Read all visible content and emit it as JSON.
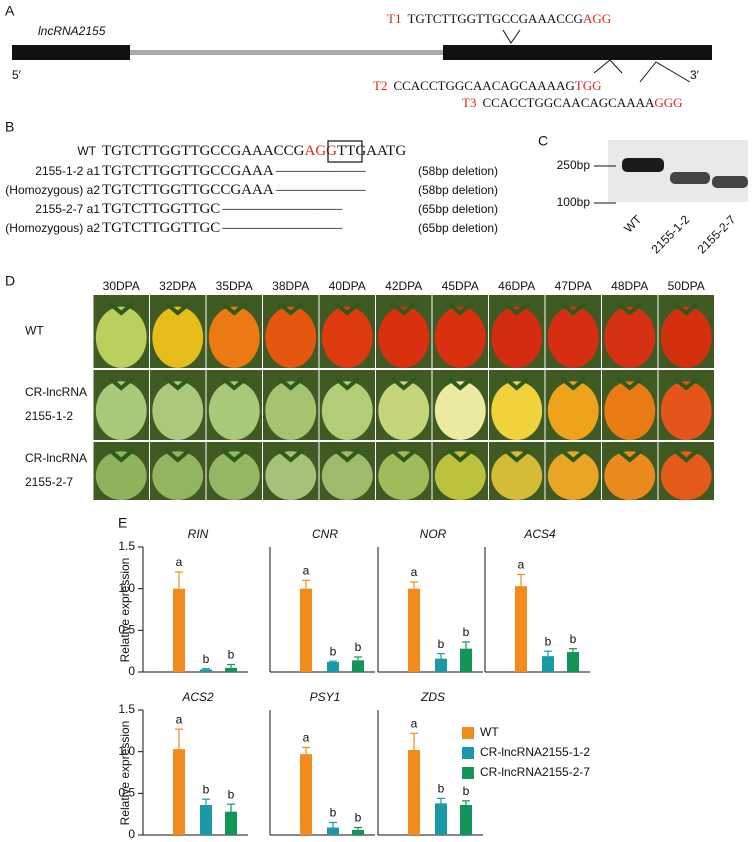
{
  "panel_a": {
    "label": "A",
    "gene": "lncRNA2155",
    "five_prime": "5′",
    "three_prime": "3′",
    "targets": [
      {
        "name": "T1",
        "sequence": "TGTCTTGGTTGCCGAAACCG",
        "pam": "AGG"
      },
      {
        "name": "T2",
        "sequence": "CCACCTGGCAACAGCAAAAG",
        "pam": "TGG"
      },
      {
        "name": "T3",
        "sequence": "CCACCTGGCAACAGCAAAA",
        "pam": "GGG"
      }
    ]
  },
  "panel_b": {
    "label": "B",
    "wt": {
      "name": "WT",
      "sequence": "TGTCTTGGTTGCCGAAACCG",
      "pam": "AGG",
      "tail": "TTGAATG"
    },
    "rows": [
      {
        "name": "2155-1-2 a1",
        "sequence": "TGTCTTGGTTGCCGAAA",
        "gap": "––––––––––––",
        "note": "(58bp deletion)"
      },
      {
        "name": "(Homozygous) a2",
        "sequence": "TGTCTTGGTTGCCGAAA",
        "gap": "––––––––––––",
        "note": "(58bp deletion)"
      },
      {
        "name": "2155-2-7 a1",
        "sequence": "TGTCTTGGTTGC",
        "gap": "––––––––––––––––",
        "note": "(65bp deletion)"
      },
      {
        "name": "(Homozygous) a2",
        "sequence": "TGTCTTGGTTGC",
        "gap": "––––––––––––––––",
        "note": "(65bp deletion)"
      }
    ]
  },
  "panel_c": {
    "label": "C",
    "markers": [
      "250bp",
      "100bp"
    ],
    "lanes": [
      "WT",
      "2155-1-2",
      "2155-2-7"
    ]
  },
  "panel_d": {
    "label": "D",
    "stages": [
      "30DPA",
      "32DPA",
      "35DPA",
      "38DPA",
      "40DPA",
      "42DPA",
      "45DPA",
      "46DPA",
      "47DPA",
      "48DPA",
      "50DPA"
    ],
    "rows": [
      [
        "WT"
      ],
      [
        "CR-lncRNA",
        "2155-1-2"
      ],
      [
        "CR-lncRNA",
        "2155-2-7"
      ]
    ]
  },
  "panel_e": {
    "label": "E",
    "ylabel": "Relative expression",
    "legend": [
      {
        "name": "WT",
        "color": "#f28a1c"
      },
      {
        "name": "CR-lncRNA2155-1-2",
        "color": "#1a9aa6"
      },
      {
        "name": "CR-lncRNA2155-2-7",
        "color": "#13955a"
      }
    ]
  },
  "chart_data": [
    {
      "type": "bar",
      "title": "RIN",
      "values": [
        1.0,
        0.03,
        0.05
      ],
      "errors": [
        0.2,
        0.01,
        0.04
      ],
      "annotations": [
        "a",
        "b",
        "b"
      ],
      "colors": [
        "#f28a1c",
        "#1a9aa6",
        "#13955a"
      ],
      "ylim": [
        0,
        1.5
      ],
      "yticks": [
        0,
        0.5,
        {
          "value": 1,
          "label": "1.0"
        },
        1.5
      ]
    },
    {
      "type": "bar",
      "title": "CNR",
      "values": [
        1.0,
        0.12,
        0.14
      ],
      "errors": [
        0.1,
        0.01,
        0.04
      ],
      "annotations": [
        "a",
        "b",
        "b"
      ],
      "colors": [
        "#f28a1c",
        "#1a9aa6",
        "#13955a"
      ],
      "ylim": [
        0,
        1.5
      ]
    },
    {
      "type": "bar",
      "title": "NOR",
      "values": [
        1.0,
        0.16,
        0.28
      ],
      "errors": [
        0.08,
        0.06,
        0.08
      ],
      "annotations": [
        "a",
        "b",
        "b"
      ],
      "colors": [
        "#f28a1c",
        "#1a9aa6",
        "#13955a"
      ],
      "ylim": [
        0,
        1.5
      ]
    },
    {
      "type": "bar",
      "title": "ACS4",
      "values": [
        1.03,
        0.19,
        0.24
      ],
      "errors": [
        0.14,
        0.06,
        0.04
      ],
      "annotations": [
        "a",
        "b",
        "b"
      ],
      "colors": [
        "#f28a1c",
        "#1a9aa6",
        "#13955a"
      ],
      "ylim": [
        0,
        1.5
      ]
    },
    {
      "type": "bar",
      "title": "ACS2",
      "values": [
        1.03,
        0.36,
        0.28
      ],
      "errors": [
        0.24,
        0.07,
        0.09
      ],
      "annotations": [
        "a",
        "b",
        "b"
      ],
      "colors": [
        "#f28a1c",
        "#1a9aa6",
        "#13955a"
      ],
      "ylim": [
        0,
        1.5
      ],
      "yticks": [
        0,
        0.5,
        {
          "value": 1,
          "label": "1.0"
        },
        1.5
      ]
    },
    {
      "type": "bar",
      "title": "PSY1",
      "values": [
        0.97,
        0.09,
        0.06
      ],
      "errors": [
        0.08,
        0.06,
        0.03
      ],
      "annotations": [
        "a",
        "b",
        "b"
      ],
      "colors": [
        "#f28a1c",
        "#1a9aa6",
        "#13955a"
      ],
      "ylim": [
        0,
        1.5
      ]
    },
    {
      "type": "bar",
      "title": "ZDS",
      "values": [
        1.02,
        0.38,
        0.36
      ],
      "errors": [
        0.2,
        0.06,
        0.05
      ],
      "annotations": [
        "a",
        "b",
        "b"
      ],
      "colors": [
        "#f28a1c",
        "#1a9aa6",
        "#13955a"
      ],
      "ylim": [
        0,
        1.5
      ]
    }
  ]
}
